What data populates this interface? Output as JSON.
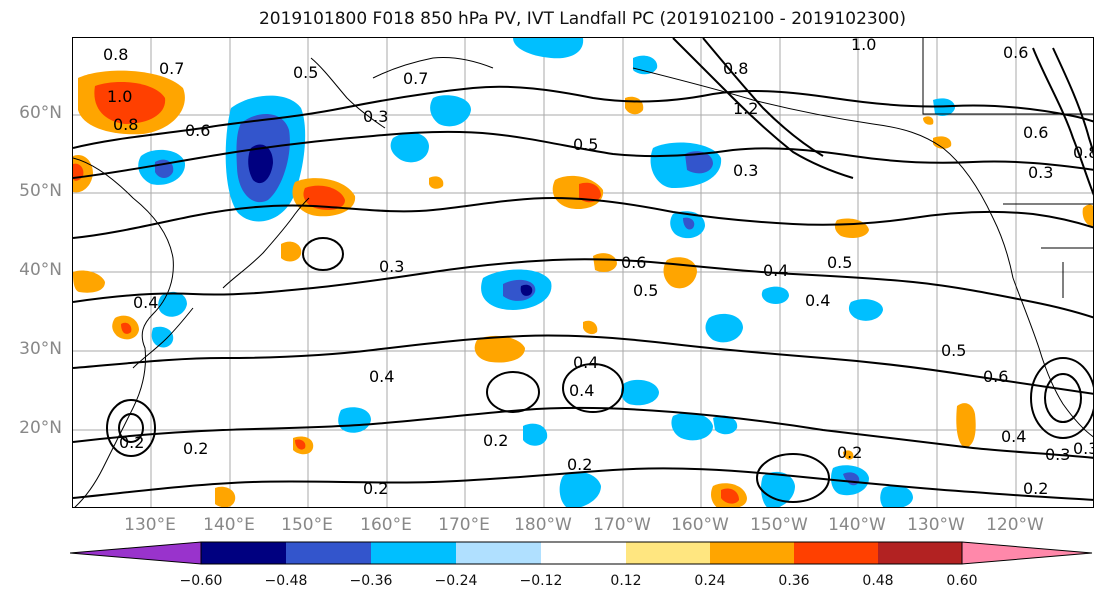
{
  "title": "2019101800 F018 850 hPa PV, IVT Landfall PC (2019102100 - 2019102300)",
  "lat_labels": [
    "60°N",
    "50°N",
    "40°N",
    "30°N",
    "20°N"
  ],
  "lon_labels": [
    "130°E",
    "140°E",
    "150°E",
    "160°E",
    "170°E",
    "180°W",
    "170°W",
    "160°W",
    "150°W",
    "140°W",
    "130°W",
    "120°W"
  ],
  "colorbar": {
    "colors": [
      "#9933cc",
      "#000080",
      "#3355cc",
      "#00bfff",
      "#b0e0ff",
      "#ffffff",
      "#ffe680",
      "#ffa500",
      "#ff4000",
      "#b22222",
      "#ff88aa"
    ],
    "tick_labels": [
      "−0.60",
      "−0.48",
      "−0.36",
      "−0.24",
      "−0.12",
      "0.12",
      "0.24",
      "0.36",
      "0.48",
      "0.60"
    ]
  },
  "contour_labels": [
    "0.8",
    "0.7",
    "0.5",
    "0.7",
    "0.8",
    "1.0",
    "0.6",
    "1.0",
    "0.8",
    "0.3",
    "0.6",
    "1.2",
    "0.5",
    "0.3",
    "0.6",
    "0.3",
    "0.8",
    "0.4",
    "0.3",
    "0.6",
    "0.5",
    "0.4",
    "0.5",
    "0.4",
    "0.4",
    "0.4",
    "0.5",
    "0.6",
    "0.3",
    "0.4",
    "0.2",
    "0.2",
    "0.2",
    "0.2",
    "0.2",
    "0.4",
    "0.3",
    "0.2",
    "0.2"
  ]
}
